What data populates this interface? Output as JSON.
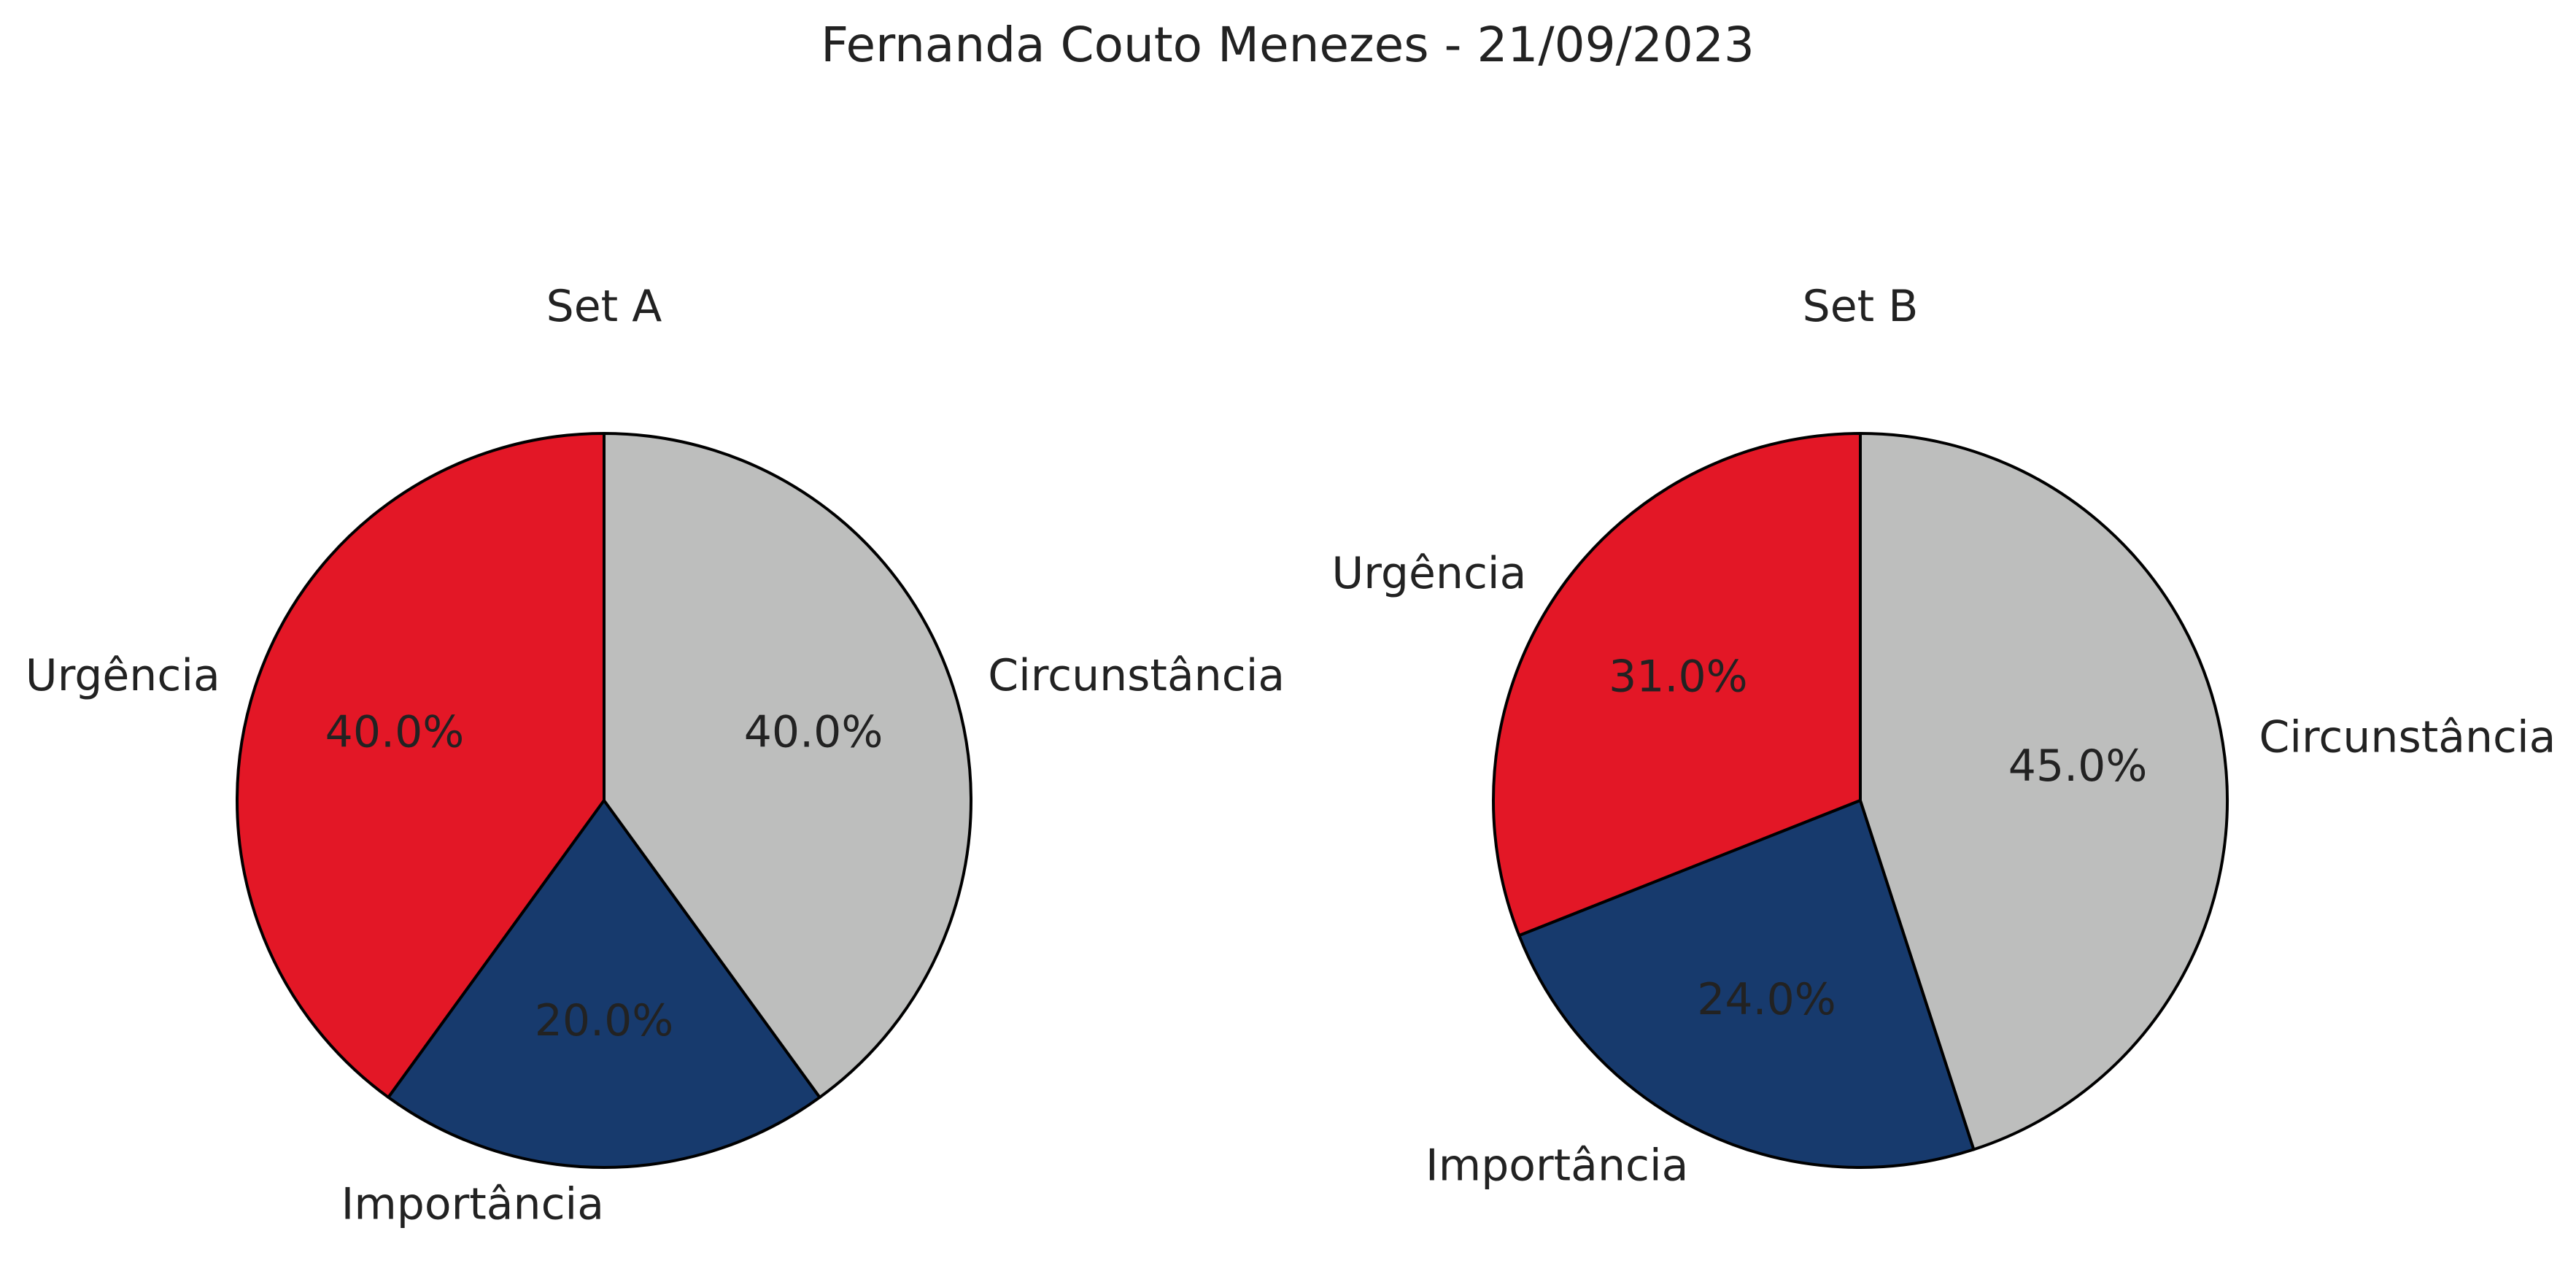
{
  "figure": {
    "title": "Fernanda Couto Menezes - 21/09/2023"
  },
  "chart_data": [
    {
      "type": "pie",
      "title": "Set A",
      "labels": [
        "Urgência",
        "Importância",
        "Circunstância"
      ],
      "values": [
        40.0,
        20.0,
        40.0
      ],
      "value_labels": [
        "40.0%",
        "20.0%",
        "40.0%"
      ],
      "colors": [
        "#e31726",
        "#173a6d",
        "#bdbebd"
      ],
      "start_angle_deg": 90,
      "direction": "counterclockwise",
      "edge_color": "#000000"
    },
    {
      "type": "pie",
      "title": "Set B",
      "labels": [
        "Urgência",
        "Importância",
        "Circunstância"
      ],
      "values": [
        31.0,
        24.0,
        45.0
      ],
      "value_labels": [
        "31.0%",
        "24.0%",
        "45.0%"
      ],
      "colors": [
        "#e31726",
        "#173a6d",
        "#bdbebd"
      ],
      "start_angle_deg": 90,
      "direction": "counterclockwise",
      "edge_color": "#000000"
    }
  ]
}
